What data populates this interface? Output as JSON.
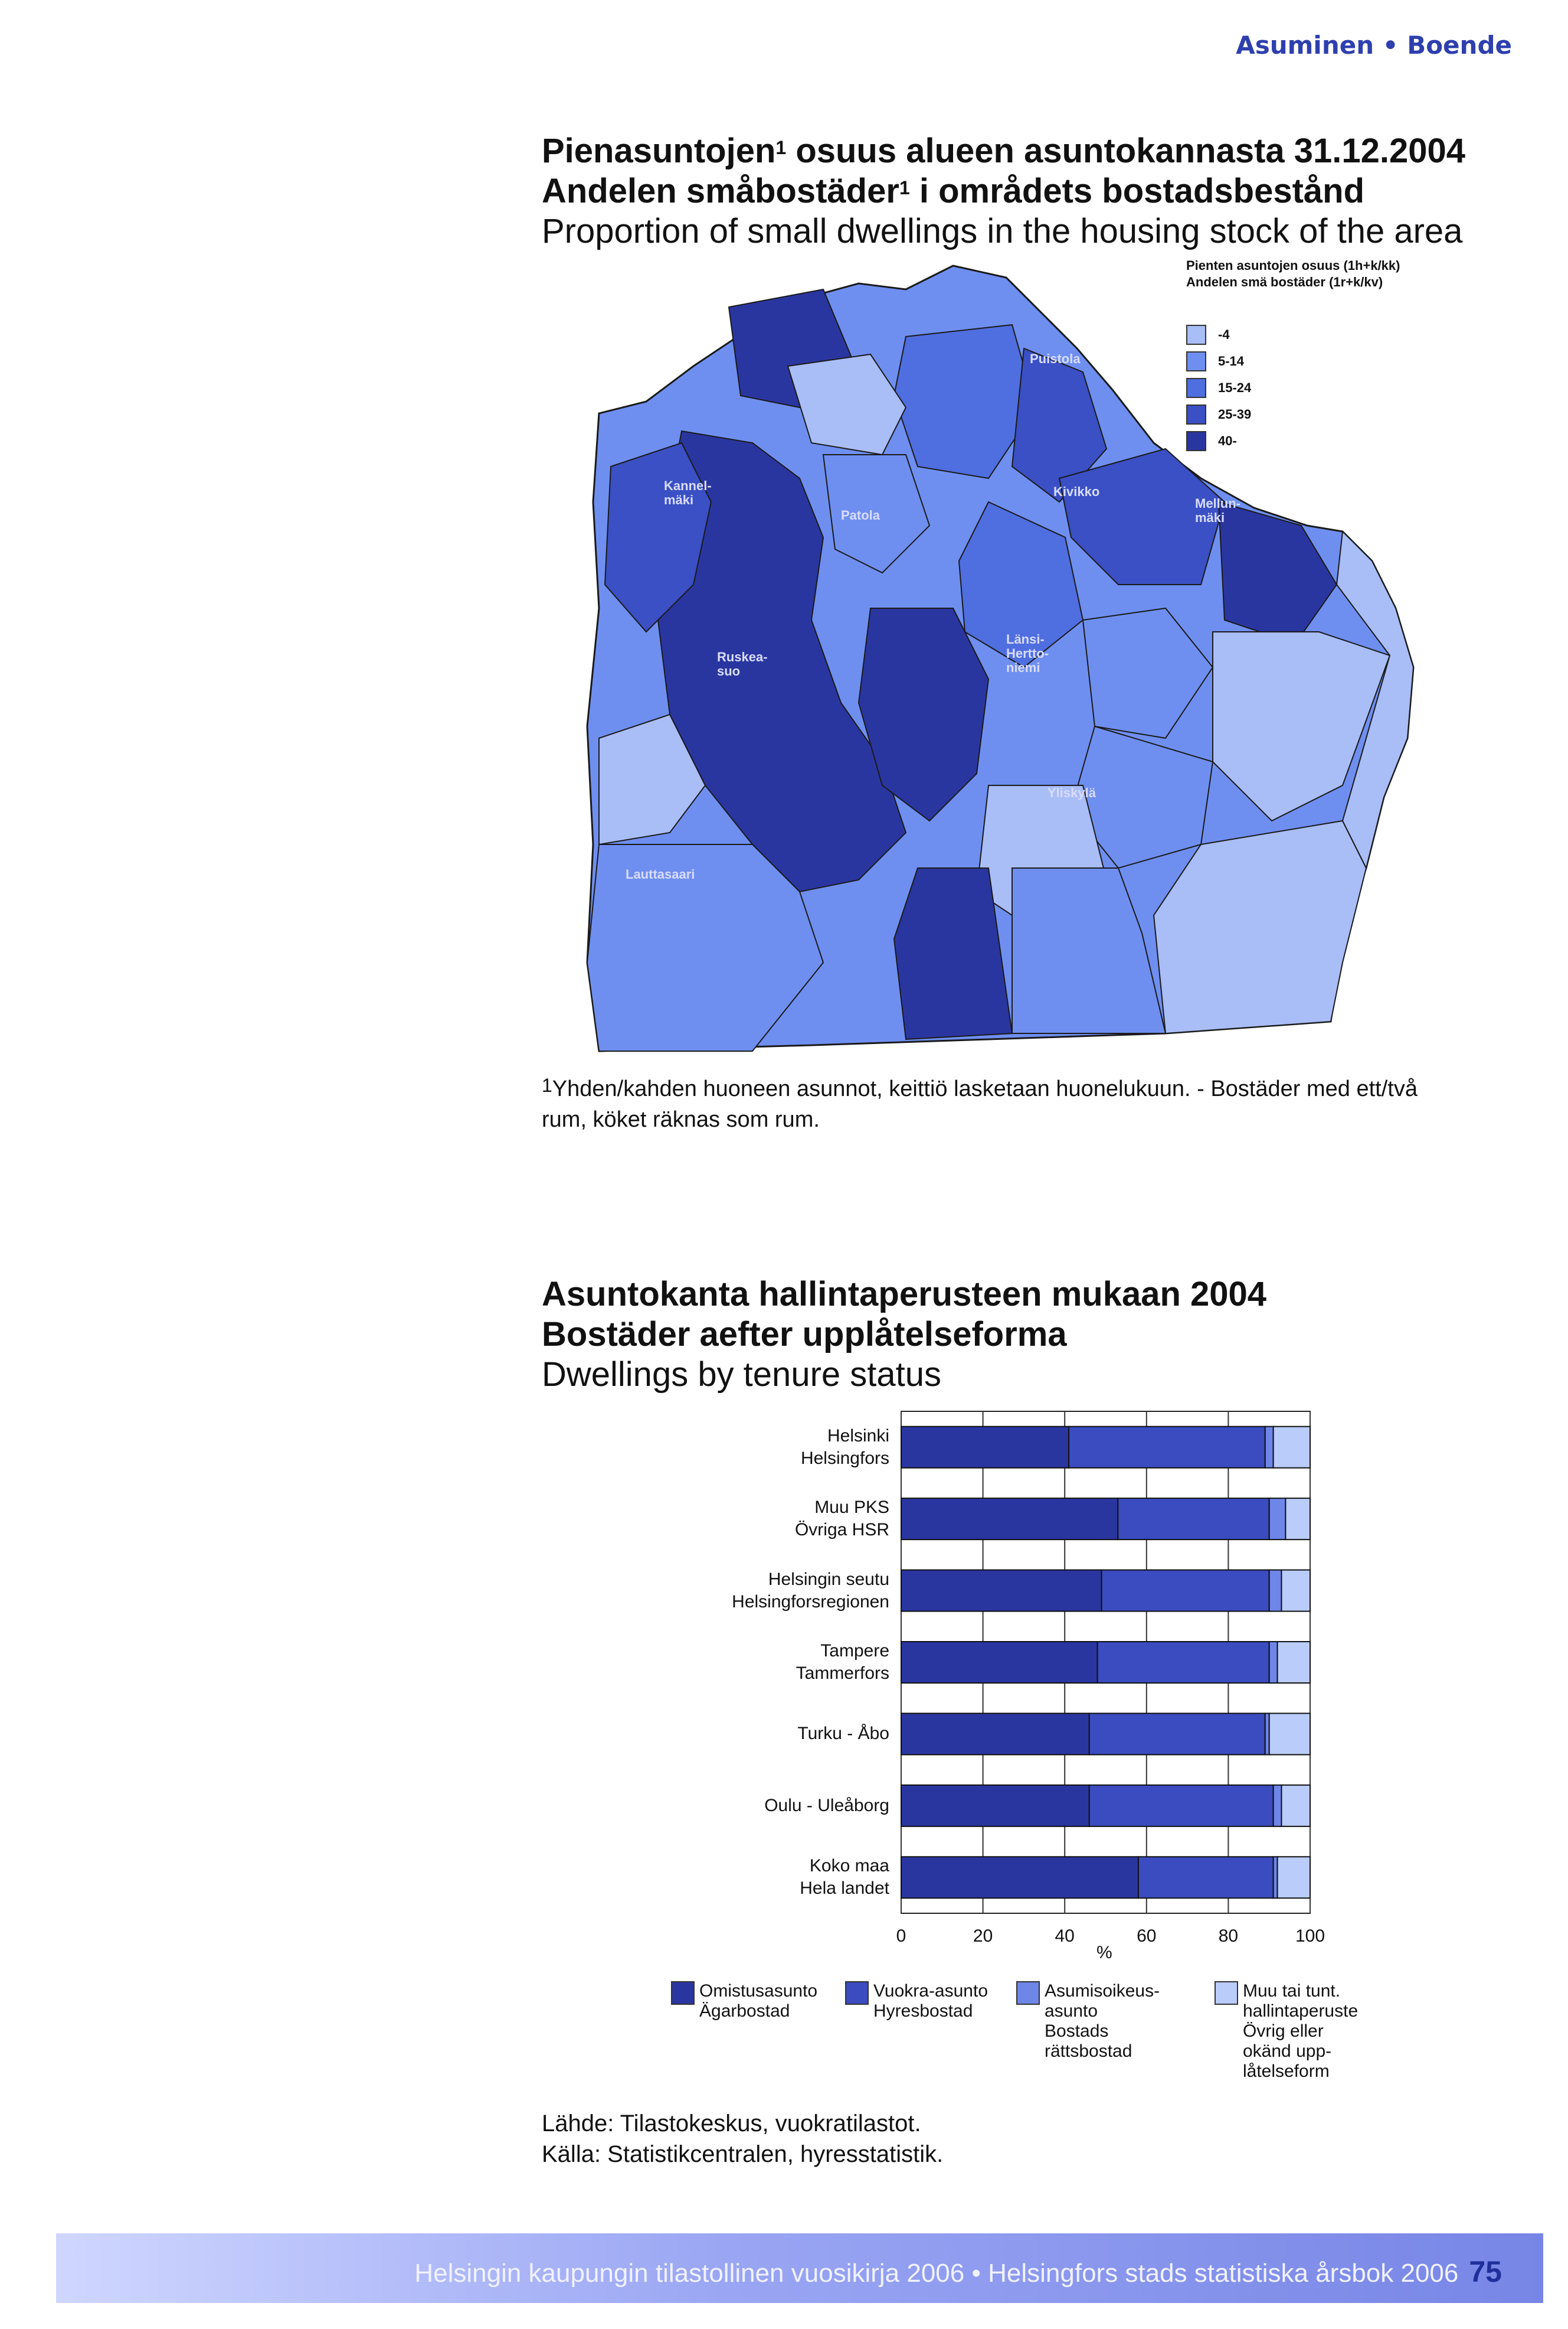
{
  "header": {
    "section": "Asuminen • Boende"
  },
  "map": {
    "title_fi": "Pienasuntojen",
    "title_fi_rest": " osuus alueen asuntokannasta 31.12.2004",
    "title_sv": "Andelen småbostäder",
    "title_sv_rest": " i områdets bostadsbestånd",
    "title_en": "Proportion of small dwellings in the housing stock of the area",
    "sup": "1",
    "legend_title_fi": "Pienten asuntojen osuus (1h+k/kk)",
    "legend_title_sv": "Andelen smä bostäder (1r+k/kv)",
    "legend_items": [
      {
        "label": "-4",
        "color": "#a9bdf7"
      },
      {
        "label": "5-14",
        "color": "#6f8ff0"
      },
      {
        "label": "15-24",
        "color": "#4f6ee0"
      },
      {
        "label": "25-39",
        "color": "#3a50c4"
      },
      {
        "label": "40-",
        "color": "#2a36a0"
      }
    ],
    "district_labels": [
      {
        "key": "puistola",
        "text": "Puistola"
      },
      {
        "key": "kannelmaki",
        "text": "Kannel-\nmäki"
      },
      {
        "key": "patola",
        "text": "Patola"
      },
      {
        "key": "kivikko",
        "text": "Kivikko"
      },
      {
        "key": "mellunmaki",
        "text": "Mellun-\nmäki"
      },
      {
        "key": "ruskeasuo",
        "text": "Ruskea-\nsuo"
      },
      {
        "key": "lansiherttoniemi",
        "text": "Länsi-\nHertto-\nniemi"
      },
      {
        "key": "yliskyla",
        "text": "Yliskylä"
      },
      {
        "key": "lauttasaari",
        "text": "Lauttasaari"
      }
    ],
    "footnote_sup": "1",
    "footnote": "Yhden/kahden huoneen asunnot, keittiö lasketaan huonelukuun. - Bostäder med ett/två rum, köket räknas som rum."
  },
  "chart_title": {
    "fi": "Asuntokanta hallintaperusteen mukaan 2004",
    "sv": "Bostäder aefter upplåtelseforma",
    "en": "Dwellings by tenure status"
  },
  "chart_data": {
    "type": "bar",
    "orientation": "horizontal",
    "stacked": true,
    "categories": [
      "Helsinki\nHelsingfors",
      "Muu PKS\nÖvriga HSR",
      "Helsingin seutu\nHelsingforsregionen",
      "Tampere\nTammerfors",
      "Turku - Åbo",
      "Oulu - Uleåborg",
      "Koko maa\nHela landet"
    ],
    "series": [
      {
        "name": "Omistusasunto\nÄgarbostad",
        "color": "#2a36a0",
        "values": [
          41,
          53,
          49,
          48,
          46,
          46,
          58
        ]
      },
      {
        "name": "Vuokra-asunto\nHyresbostad",
        "color": "#3a4cc0",
        "values": [
          48,
          37,
          41,
          42,
          43,
          45,
          33
        ]
      },
      {
        "name": "Asumisoikeus-\nasunto\nBostads\nrättsbostad",
        "color": "#6d86e8",
        "values": [
          2,
          4,
          3,
          2,
          1,
          2,
          1
        ]
      },
      {
        "name": "Muu tai tunt.\nhallintaperuste\nÖvrig eller\nokänd upp-\nlåtelseform",
        "color": "#b9ccfa",
        "values": [
          9,
          6,
          7,
          8,
          10,
          7,
          8
        ]
      }
    ],
    "xlim": [
      0,
      100
    ],
    "xticks": [
      "0",
      "20",
      "40",
      "60",
      "80",
      "100"
    ],
    "xlabel": "%",
    "grid": true
  },
  "source": {
    "fi": "Lähde: Tilastokeskus, vuokratilastot.",
    "sv": "Källa: Statistikcentralen, hyresstatistik."
  },
  "footer": {
    "text": "Helsingin kaupungin tilastollinen vuosikirja 2006 • Helsingfors stads statistiska årsbok 2006",
    "page": "75"
  }
}
